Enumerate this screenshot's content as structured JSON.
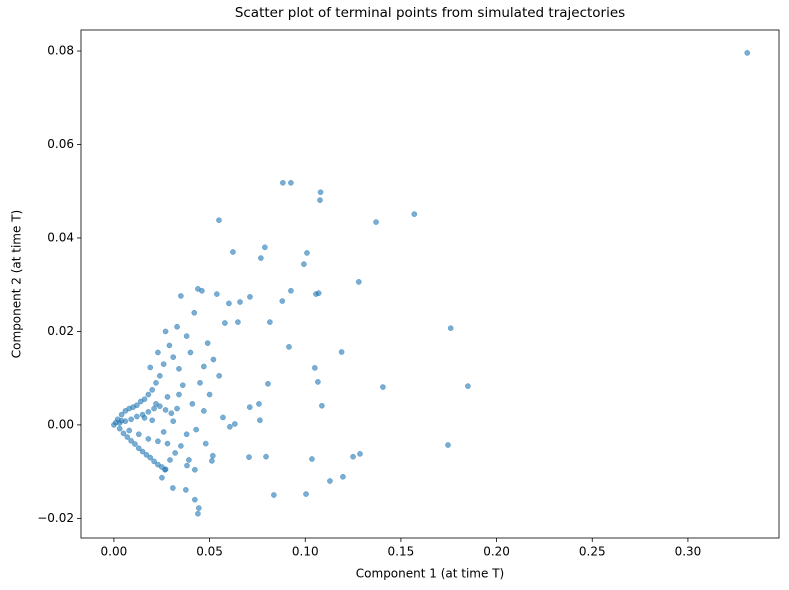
{
  "chart_data": {
    "type": "scatter",
    "title": "Scatter plot of terminal points from simulated trajectories",
    "x_label": "Component 1 (at time T)",
    "y_label": "Component 2 (at time T)",
    "color": "#1f77b4",
    "xlim": [
      -0.0172,
      0.3476
    ],
    "ylim": [
      -0.0242,
      0.0845
    ],
    "xticks": [
      {
        "value": 0,
        "label": "0.00"
      },
      0.05,
      {
        "value": 0.1,
        "label": "0.10"
      },
      0.15,
      {
        "value": 0.2,
        "label": "0.20"
      },
      0.25,
      {
        "value": 0.3,
        "label": "0.30"
      }
    ],
    "yticks": [
      {
        "value": -0.02,
        "label": "−0.02"
      },
      {
        "value": 0,
        "label": "0.00"
      },
      0.02,
      0.04,
      0.06,
      0.08
    ],
    "x": [
      0.331,
      0.0883,
      0.0925,
      0.108,
      0.1077,
      0.0549,
      0.137,
      0.157,
      0.0622,
      0.0789,
      0.0768,
      0.1009,
      0.0993,
      0.0925,
      0.128,
      0.0711,
      0.1056,
      0.107,
      0.088,
      0.0659,
      0.0601,
      0.0538,
      0.0439,
      0.046,
      0.035,
      0.0815,
      0.176,
      0.0648,
      0.058,
      0.0915,
      0.119,
      0.105,
      0.1066,
      0.0805,
      0.1406,
      0.185,
      0.1087,
      0.0758,
      0.071,
      0.0763,
      0.0632,
      0.0606,
      0.1746,
      0.0706,
      0.0795,
      0.1035,
      0.125,
      0.1286,
      0.1197,
      0.1129,
      0.0836,
      0.1004,
      0.0423,
      0.0444,
      0.0439,
      0.0376,
      0.0308,
      0.0517,
      0.0512,
      0.0392,
      0.0382,
      0.0423,
      0.0293,
      0.0251,
      0.0267,
      0.049,
      0.047,
      0.052,
      0.045,
      0.05,
      0.041,
      0.047,
      0.043,
      0.048,
      0.038,
      0.055,
      0.057,
      0.036,
      0.034,
      0.031,
      0.029,
      0.033,
      0.038,
      0.04,
      0.042,
      0.026,
      0.024,
      0.022,
      0.02,
      0.018,
      0.016,
      0.014,
      0.012,
      0.01,
      0.008,
      0.006,
      0.004,
      0.002,
      0.001,
      0,
      0.003,
      0.005,
      0.007,
      0.009,
      0.011,
      0.013,
      0.015,
      0.017,
      0.019,
      0.021,
      0.023,
      0.025,
      0.027,
      0.003,
      0.006,
      0.009,
      0.012,
      0.015,
      0.018,
      0.021,
      0.024,
      0.027,
      0.03,
      0.033,
      0.028,
      0.022,
      0.016,
      0.013,
      0.018,
      0.023,
      0.028,
      0.032,
      0.035,
      0.031,
      0.008,
      0.004,
      0.02,
      0.026,
      0.034,
      0.019,
      0.023,
      0.027
    ],
    "values": [
      0.0796,
      0.0518,
      0.0518,
      0.0498,
      0.0481,
      0.0438,
      0.0434,
      0.0451,
      0.037,
      0.038,
      0.0357,
      0.0368,
      0.0344,
      0.0287,
      0.0306,
      0.0274,
      0.028,
      0.0282,
      0.0265,
      0.0263,
      0.026,
      0.028,
      0.0291,
      0.0287,
      0.0276,
      0.022,
      0.0207,
      0.022,
      0.0218,
      0.0167,
      0.0156,
      0.0122,
      0.0092,
      0.0088,
      0.0081,
      0.0083,
      0.0041,
      0.0045,
      0.0038,
      0.001,
      0.0002,
      -0.0004,
      -0.0043,
      -0.0069,
      -0.0068,
      -0.0073,
      -0.0068,
      -0.0062,
      -0.0111,
      -0.012,
      -0.015,
      -0.0148,
      -0.016,
      -0.0178,
      -0.019,
      -0.0139,
      -0.0135,
      -0.0066,
      -0.0077,
      -0.0075,
      -0.0087,
      -0.0096,
      -0.0075,
      -0.0113,
      -0.0096,
      0.0175,
      0.0125,
      0.014,
      0.009,
      0.0065,
      0.0045,
      0.003,
      -0.001,
      -0.004,
      -0.002,
      0.0105,
      0.0016,
      0.0085,
      0.012,
      0.0145,
      0.017,
      0.021,
      0.019,
      0.0155,
      0.024,
      0.013,
      0.0105,
      0.009,
      0.0075,
      0.0065,
      0.0055,
      0.005,
      0.0042,
      0.0038,
      0.0035,
      0.003,
      0.0022,
      0.0012,
      0.0005,
      0,
      -0.0008,
      -0.0018,
      -0.0026,
      -0.0034,
      -0.0041,
      -0.005,
      -0.0057,
      -0.0064,
      -0.007,
      -0.0078,
      -0.0085,
      -0.009,
      -0.0095,
      0.0004,
      0.0008,
      0.0012,
      0.0018,
      0.0022,
      0.0028,
      0.0035,
      0.004,
      0.0032,
      0.0025,
      0.0035,
      0.006,
      0.0045,
      0.0015,
      -0.002,
      -0.003,
      -0.0035,
      -0.004,
      -0.006,
      -0.0045,
      0.0008,
      -0.0012,
      0.0009,
      0.001,
      -0.0015,
      0.0065,
      0.0123,
      0.0155,
      0.02
    ]
  }
}
